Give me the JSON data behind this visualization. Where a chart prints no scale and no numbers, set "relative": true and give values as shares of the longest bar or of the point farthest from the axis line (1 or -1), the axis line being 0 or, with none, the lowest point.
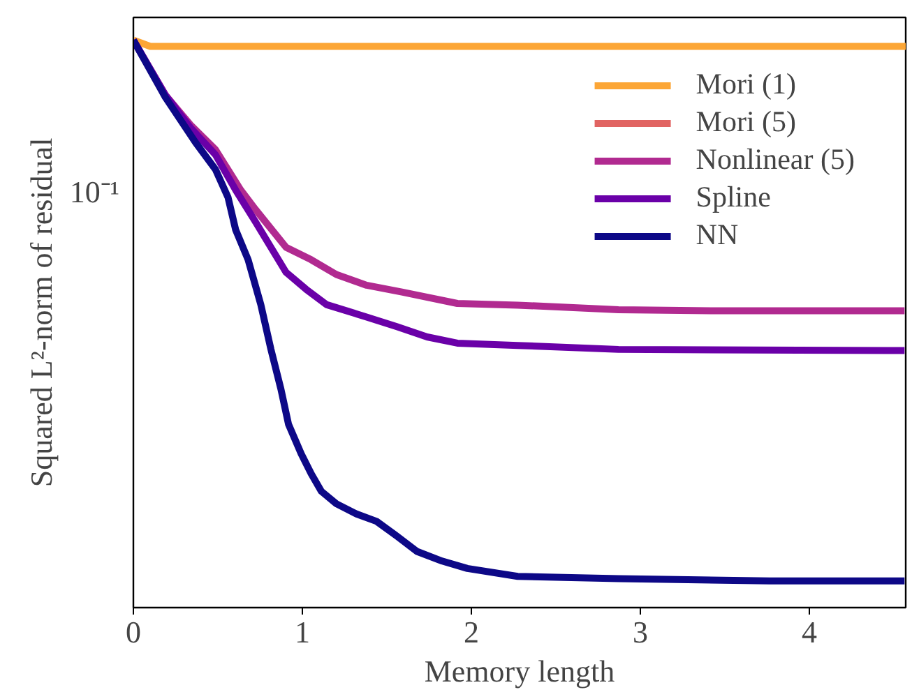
{
  "chart_data": {
    "type": "line",
    "xlabel": "Memory length",
    "ylabel": "Squared L²-norm of residual",
    "relative": true,
    "grid": false,
    "legend": "top right",
    "line_style": "solid",
    "xlim": [
      0,
      4.57
    ],
    "xticks": [
      0,
      1,
      2,
      3,
      4
    ],
    "annotations": [
      "10⁻¹"
    ],
    "series": [
      {
        "name": "Mori (1)",
        "color": "#fca636",
        "x": [
          0,
          0.1,
          1,
          2,
          3,
          4,
          4.57
        ],
        "values": [
          1,
          0.989,
          0.989,
          0.989,
          0.989,
          0.989,
          0.989
        ]
      },
      {
        "name": "Mori (5)",
        "color": "#e16462",
        "values": [
          null
        ]
      },
      {
        "name": "Nonlinear (5)",
        "color": "#b12a90",
        "x": [
          0,
          0.19,
          0.337,
          0.486,
          0.635,
          0.724,
          0.903,
          1.052,
          1.201,
          1.38,
          1.589,
          1.917,
          2.274,
          2.87,
          3.466,
          4.563
        ],
        "values": [
          1,
          0.903,
          0.851,
          0.807,
          0.736,
          0.701,
          0.635,
          0.613,
          0.587,
          0.568,
          0.556,
          0.536,
          0.533,
          0.525,
          0.523,
          0.523
        ]
      },
      {
        "name": "Spline",
        "color": "#6a00a8",
        "x": [
          0,
          0.19,
          0.337,
          0.486,
          0.605,
          0.724,
          0.903,
          1.022,
          1.142,
          1.38,
          1.559,
          1.738,
          1.917,
          2.274,
          2.87,
          4.563
        ],
        "values": [
          1,
          0.903,
          0.846,
          0.798,
          0.736,
          0.679,
          0.591,
          0.561,
          0.534,
          0.512,
          0.495,
          0.477,
          0.466,
          0.462,
          0.455,
          0.453
        ]
      },
      {
        "name": "NN",
        "color": "#0d0887",
        "x": [
          0,
          0.19,
          0.367,
          0.486,
          0.56,
          0.605,
          0.679,
          0.754,
          0.814,
          0.873,
          0.918,
          0.993,
          1.052,
          1.112,
          1.201,
          1.32,
          1.439,
          1.559,
          1.678,
          1.827,
          1.976,
          2.274,
          2.87,
          3.764,
          4.563
        ],
        "values": [
          1,
          0.899,
          0.82,
          0.772,
          0.723,
          0.666,
          0.613,
          0.534,
          0.455,
          0.385,
          0.323,
          0.271,
          0.236,
          0.205,
          0.183,
          0.165,
          0.152,
          0.126,
          0.099,
          0.082,
          0.069,
          0.055,
          0.051,
          0.047,
          0.047
        ]
      }
    ]
  }
}
